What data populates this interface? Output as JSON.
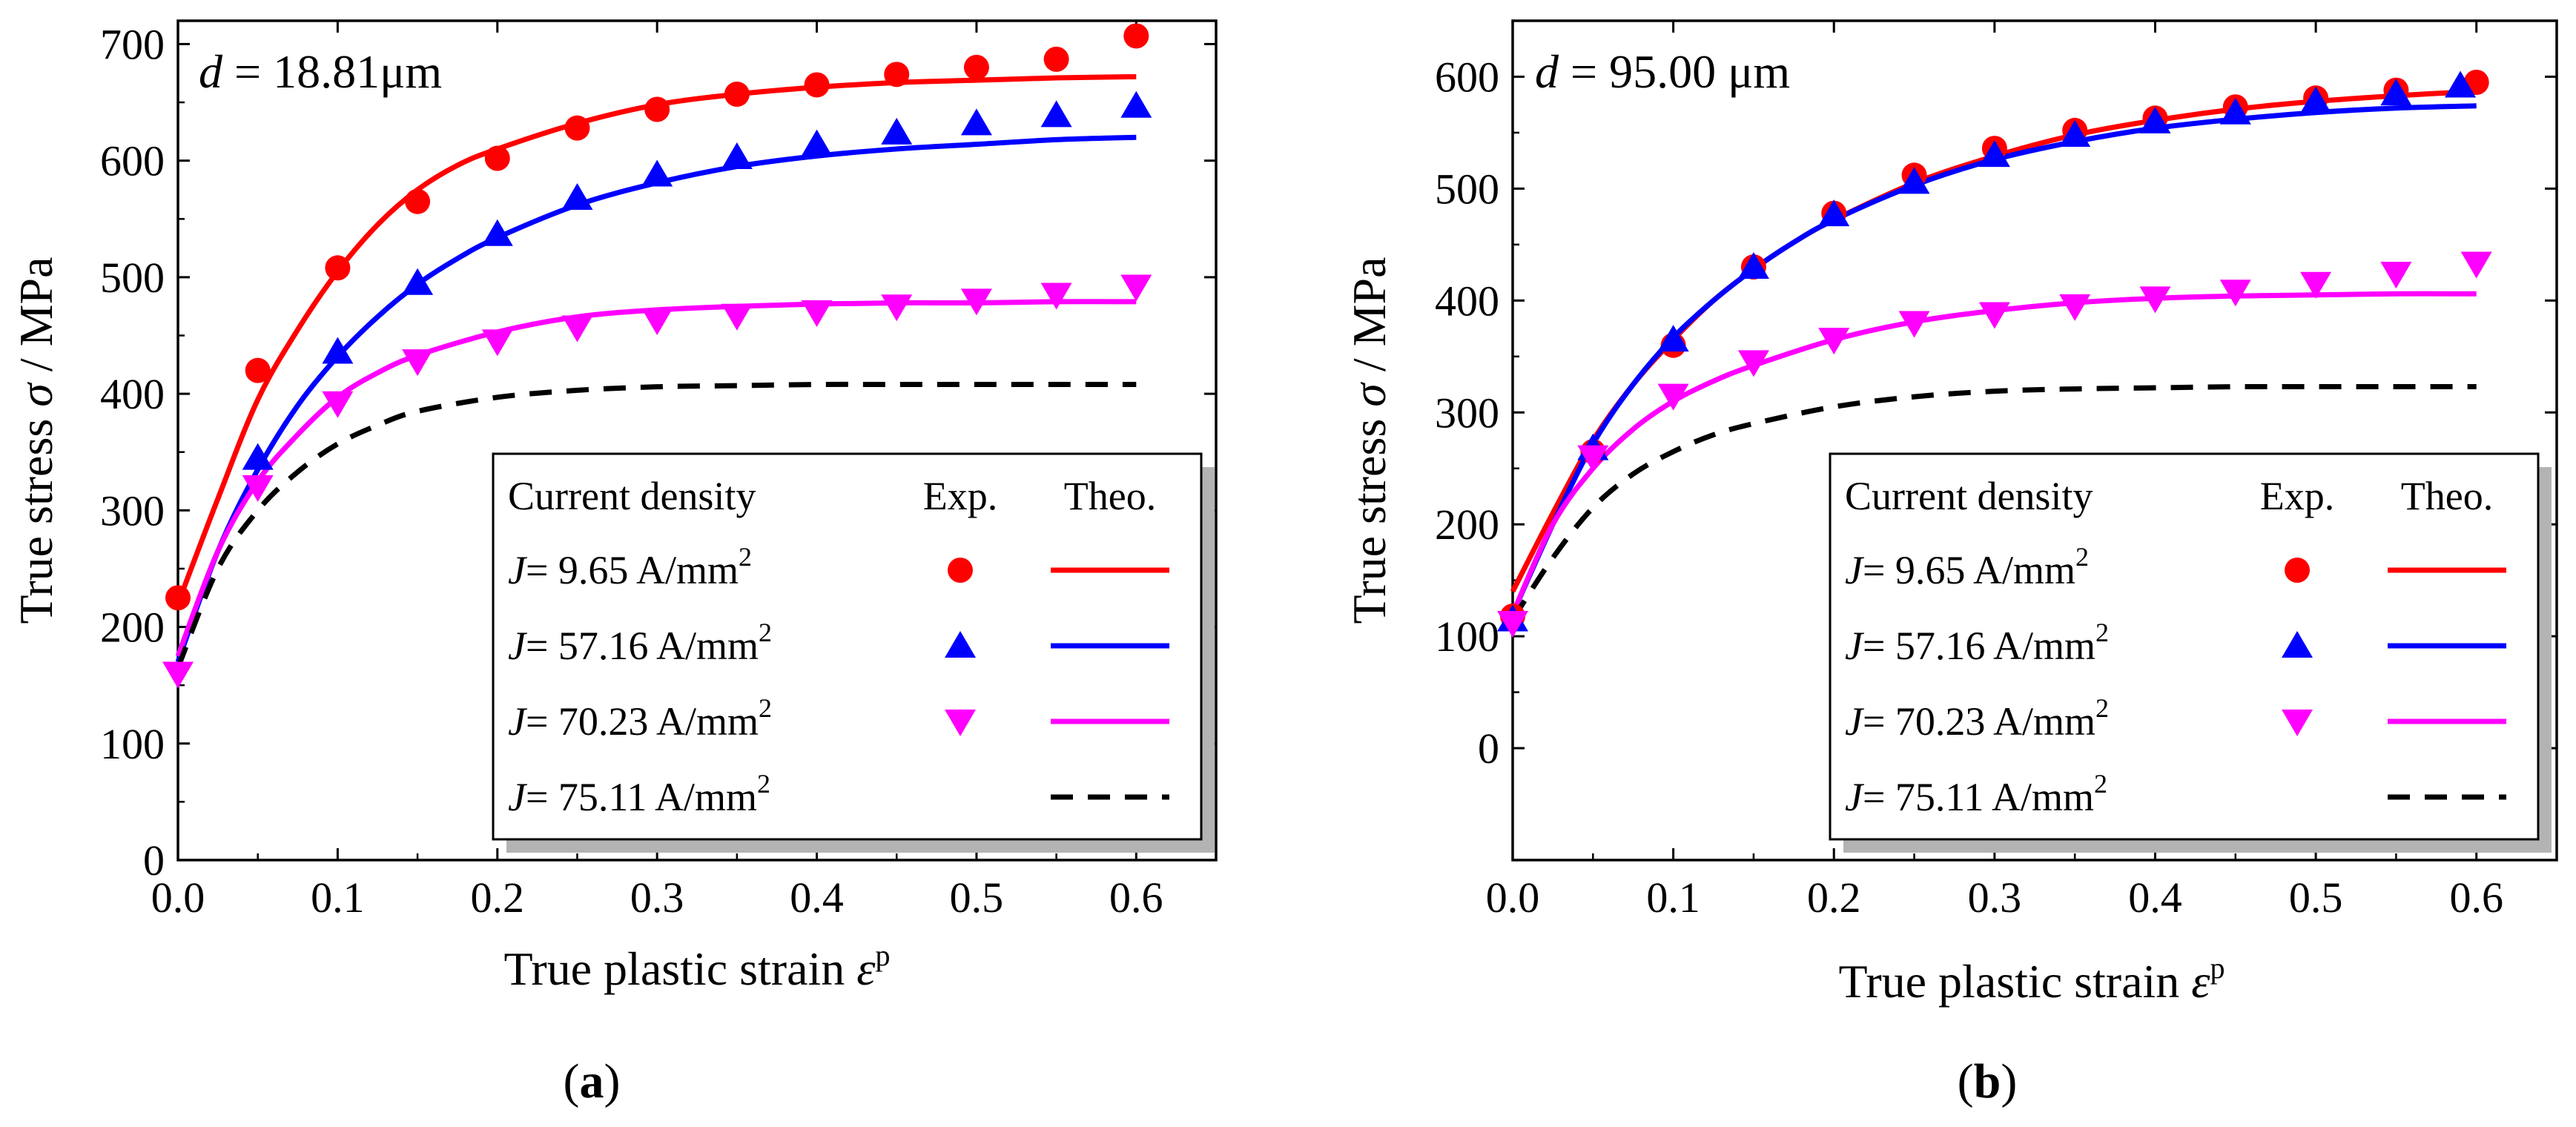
{
  "chart_data": [
    {
      "type": "scatter",
      "panel_label": "(a)",
      "annotation": {
        "italic": "d",
        "text": " = 18.81μm"
      },
      "xlabel": {
        "text": "True plastic strain ",
        "symbol": "ε",
        "sup": "p"
      },
      "ylabel": {
        "text": "True stress ",
        "symbol": "σ",
        "unit": "/ MPa"
      },
      "xlim": [
        0,
        0.65
      ],
      "ylim": [
        0,
        720
      ],
      "xticks": [
        0,
        0.1,
        0.2,
        0.3,
        0.4,
        0.5,
        0.6
      ],
      "xtick_labels": [
        "0.0",
        "0.1",
        "0.2",
        "0.3",
        "0.4",
        "0.5",
        "0.6"
      ],
      "yticks": [
        0,
        100,
        200,
        300,
        400,
        500,
        600,
        700
      ],
      "ytick_labels": [
        "0",
        "100",
        "200",
        "300",
        "400",
        "500",
        "600",
        "700"
      ],
      "legend": {
        "title": "Current density",
        "col_exp": "Exp.",
        "col_theo": "Theo.",
        "placement": "lower-right",
        "entries": [
          {
            "prefix": "J",
            "label": "= 9.65 A/mm",
            "sup": "2"
          },
          {
            "prefix": "J",
            "label": "= 57.16 A/mm",
            "sup": "2"
          },
          {
            "prefix": "J",
            "label": "= 70.23 A/mm",
            "sup": "2"
          },
          {
            "prefix": "J",
            "label": "= 75.11 A/mm",
            "sup": "2"
          }
        ]
      },
      "series": [
        {
          "name": "J= 9.65 A/mm2",
          "color": "#ff0000",
          "marker": "circle",
          "line": "solid",
          "exp_x": [
            0,
            0.05,
            0.1,
            0.15,
            0.2,
            0.25,
            0.3,
            0.35,
            0.4,
            0.45,
            0.5,
            0.55,
            0.6
          ],
          "exp_y": [
            225,
            420,
            508,
            565,
            602,
            628,
            644,
            657,
            665,
            674,
            680,
            687,
            707
          ],
          "theo_x": [
            0,
            0.025,
            0.05,
            0.075,
            0.1,
            0.125,
            0.15,
            0.175,
            0.2,
            0.25,
            0.3,
            0.35,
            0.4,
            0.45,
            0.5,
            0.55,
            0.6
          ],
          "theo_y": [
            220,
            310,
            395,
            455,
            505,
            545,
            575,
            596,
            610,
            632,
            648,
            657,
            663,
            667,
            669,
            671,
            672
          ]
        },
        {
          "name": "J= 57.16 A/mm2",
          "color": "#0000ff",
          "marker": "triangle-up",
          "line": "solid",
          "exp_x": [
            0.05,
            0.1,
            0.15,
            0.2,
            0.25,
            0.3,
            0.35,
            0.4,
            0.45,
            0.5,
            0.55,
            0.6
          ],
          "exp_y": [
            345,
            436,
            495,
            537,
            568,
            588,
            603,
            614,
            624,
            632,
            639,
            647
          ],
          "theo_x": [
            0,
            0.025,
            0.05,
            0.075,
            0.1,
            0.125,
            0.15,
            0.175,
            0.2,
            0.25,
            0.3,
            0.35,
            0.4,
            0.45,
            0.5,
            0.55,
            0.6
          ],
          "theo_y": [
            170,
            265,
            335,
            390,
            432,
            466,
            494,
            516,
            534,
            562,
            581,
            595,
            604,
            610,
            614,
            618,
            620
          ]
        },
        {
          "name": "J= 70.23 A/mm2",
          "color": "#ff00ff",
          "marker": "triangle-down",
          "line": "solid",
          "exp_x": [
            0,
            0.05,
            0.1,
            0.15,
            0.2,
            0.25,
            0.3,
            0.35,
            0.4,
            0.45,
            0.5,
            0.55,
            0.6
          ],
          "exp_y": [
            160,
            320,
            392,
            428,
            445,
            457,
            463,
            467,
            470,
            475,
            480,
            485,
            492
          ],
          "theo_x": [
            0,
            0.025,
            0.05,
            0.075,
            0.1,
            0.125,
            0.15,
            0.2,
            0.25,
            0.3,
            0.35,
            0.4,
            0.45,
            0.5,
            0.55,
            0.6
          ],
          "theo_y": [
            175,
            265,
            325,
            365,
            397,
            418,
            433,
            453,
            466,
            472,
            475,
            477,
            478,
            478,
            479,
            479
          ]
        },
        {
          "name": "J= 75.11 A/mm2",
          "color": "#000000",
          "marker": "none",
          "line": "dashed",
          "theo_x": [
            0,
            0.025,
            0.05,
            0.075,
            0.1,
            0.125,
            0.15,
            0.2,
            0.25,
            0.3,
            0.35,
            0.4,
            0.45,
            0.5,
            0.55,
            0.6
          ],
          "theo_y": [
            165,
            250,
            300,
            333,
            357,
            373,
            385,
            397,
            403,
            406,
            407,
            408,
            408,
            408,
            408,
            408
          ]
        }
      ]
    },
    {
      "type": "scatter",
      "panel_label": "(b)",
      "annotation": {
        "italic": "d",
        "text": " = 95.00 μm"
      },
      "xlabel": {
        "text": "True plastic strain ",
        "symbol": "ε",
        "sup": "p"
      },
      "ylabel": {
        "text": "True stress ",
        "symbol": "σ",
        "unit": "/ MPa"
      },
      "xlim": [
        0,
        0.65
      ],
      "ylim": [
        -100,
        650
      ],
      "xticks": [
        0,
        0.1,
        0.2,
        0.3,
        0.4,
        0.5,
        0.6
      ],
      "xtick_labels": [
        "0.0",
        "0.1",
        "0.2",
        "0.3",
        "0.4",
        "0.5",
        "0.6"
      ],
      "yticks": [
        0,
        100,
        200,
        300,
        400,
        500,
        600
      ],
      "ytick_labels": [
        "0",
        "100",
        "200",
        "300",
        "400",
        "500",
        "600"
      ],
      "legend": {
        "title": "Current density",
        "col_exp": "Exp.",
        "col_theo": "Theo.",
        "placement": "lower-right",
        "entries": [
          {
            "prefix": "J",
            "label": "= 9.65 A/mm",
            "sup": "2"
          },
          {
            "prefix": "J",
            "label": "= 57.16 A/mm",
            "sup": "2"
          },
          {
            "prefix": "J",
            "label": "= 70.23 A/mm",
            "sup": "2"
          },
          {
            "prefix": "J",
            "label": "= 75.11 A/mm",
            "sup": "2"
          }
        ]
      },
      "series": [
        {
          "name": "J= 9.65 A/mm2",
          "color": "#ff0000",
          "marker": "circle",
          "line": "solid",
          "exp_x": [
            0,
            0.05,
            0.1,
            0.15,
            0.2,
            0.25,
            0.3,
            0.35,
            0.4,
            0.45,
            0.5,
            0.55,
            0.6
          ],
          "exp_y": [
            118,
            265,
            360,
            430,
            478,
            512,
            536,
            552,
            563,
            573,
            581,
            588,
            595
          ],
          "theo_x": [
            0,
            0.025,
            0.05,
            0.075,
            0.1,
            0.125,
            0.15,
            0.175,
            0.2,
            0.25,
            0.3,
            0.35,
            0.4,
            0.45,
            0.5,
            0.55,
            0.6
          ],
          "theo_y": [
            140,
            210,
            275,
            325,
            365,
            400,
            428,
            452,
            472,
            505,
            529,
            548,
            561,
            571,
            578,
            583,
            587
          ]
        },
        {
          "name": "J= 57.16 A/mm2",
          "color": "#0000ff",
          "marker": "triangle-up",
          "line": "solid",
          "exp_x": [
            0,
            0.05,
            0.1,
            0.15,
            0.2,
            0.25,
            0.3,
            0.35,
            0.4,
            0.45,
            0.5,
            0.55,
            0.59
          ],
          "exp_y": [
            115,
            268,
            365,
            430,
            477,
            506,
            530,
            548,
            560,
            568,
            578,
            585,
            592
          ],
          "theo_x": [
            0,
            0.025,
            0.05,
            0.075,
            0.1,
            0.125,
            0.15,
            0.175,
            0.2,
            0.25,
            0.3,
            0.35,
            0.4,
            0.45,
            0.5,
            0.55,
            0.6
          ],
          "theo_y": [
            120,
            200,
            272,
            325,
            367,
            400,
            428,
            452,
            472,
            503,
            526,
            542,
            554,
            562,
            568,
            572,
            574
          ]
        },
        {
          "name": "J= 70.23 A/mm2",
          "color": "#ff00ff",
          "marker": "triangle-down",
          "line": "solid",
          "exp_x": [
            0,
            0.05,
            0.1,
            0.15,
            0.2,
            0.25,
            0.3,
            0.35,
            0.4,
            0.45,
            0.5,
            0.55,
            0.6
          ],
          "exp_y": [
            112,
            260,
            315,
            345,
            365,
            380,
            388,
            395,
            402,
            408,
            415,
            424,
            433
          ],
          "theo_x": [
            0,
            0.025,
            0.05,
            0.075,
            0.1,
            0.125,
            0.15,
            0.2,
            0.25,
            0.3,
            0.35,
            0.4,
            0.45,
            0.5,
            0.55,
            0.6
          ],
          "theo_y": [
            120,
            200,
            250,
            285,
            310,
            328,
            342,
            365,
            381,
            391,
            398,
            402,
            404,
            405,
            406,
            406
          ]
        },
        {
          "name": "J= 75.11 A/mm2",
          "color": "#000000",
          "marker": "none",
          "line": "dashed",
          "theo_x": [
            0,
            0.025,
            0.05,
            0.075,
            0.1,
            0.125,
            0.15,
            0.2,
            0.25,
            0.3,
            0.35,
            0.4,
            0.45,
            0.5,
            0.55,
            0.6
          ],
          "theo_y": [
            115,
            170,
            215,
            245,
            265,
            280,
            290,
            305,
            314,
            319,
            321,
            322,
            323,
            323,
            323,
            323
          ]
        }
      ]
    }
  ]
}
